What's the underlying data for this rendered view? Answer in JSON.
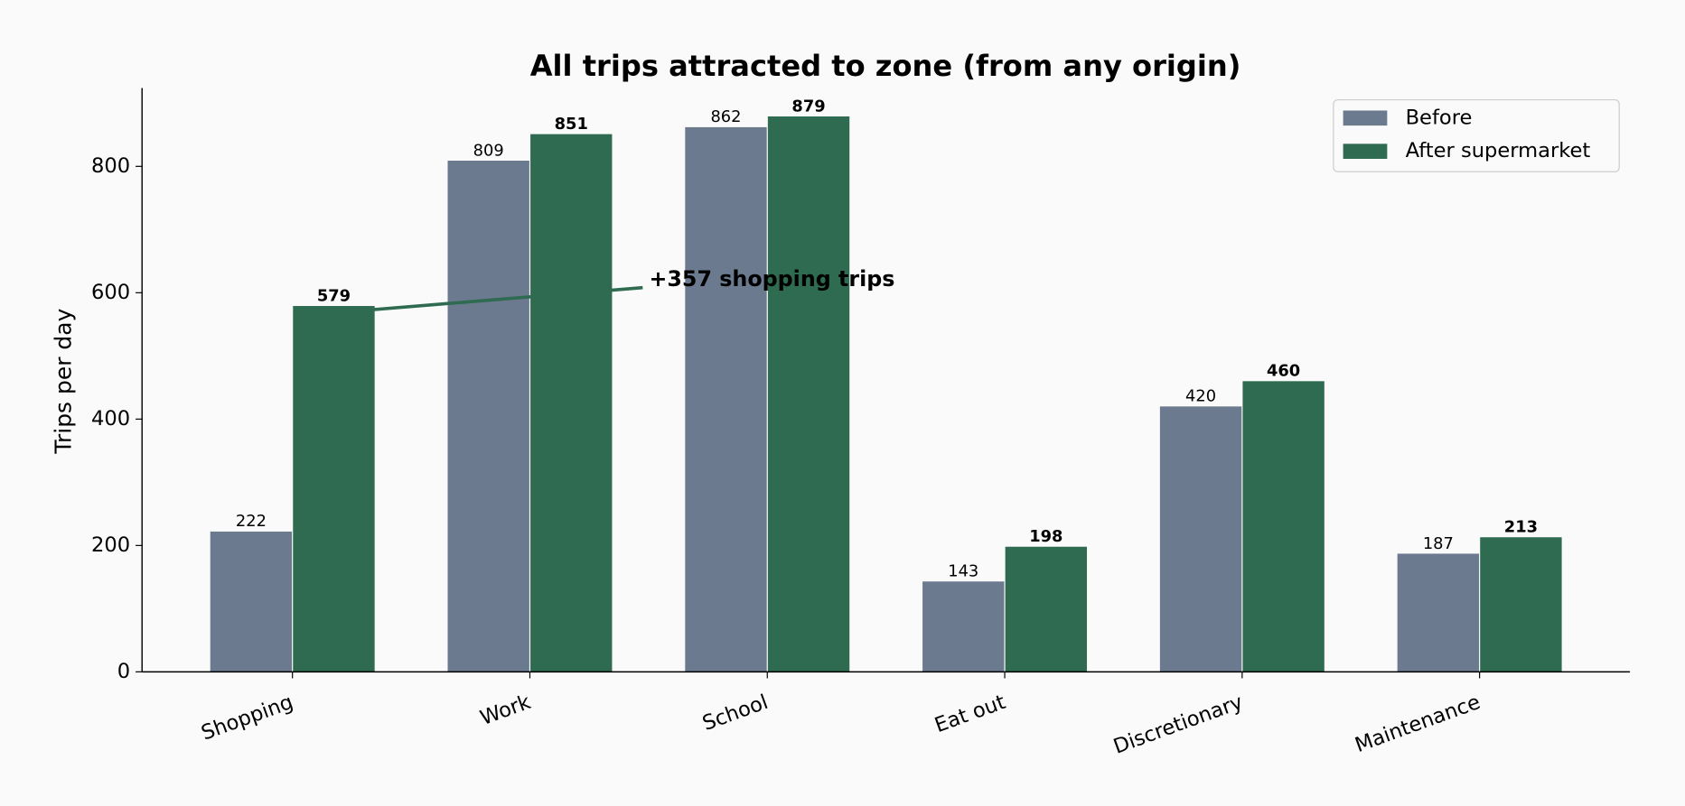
{
  "chart_data": {
    "type": "bar",
    "title": "All trips attracted to zone (from any origin)",
    "y_label": "Trips per day",
    "categories": [
      "Shopping",
      "Work",
      "School",
      "Eat out",
      "Discretionary",
      "Maintenance"
    ],
    "series": [
      {
        "name": "Before",
        "color": "#6b7a8f",
        "values": [
          222,
          809,
          862,
          143,
          420,
          187
        ]
      },
      {
        "name": "After supermarket",
        "color": "#2e6b50",
        "values": [
          579,
          851,
          879,
          198,
          460,
          213
        ]
      }
    ],
    "ylim": [
      0,
      924
    ],
    "yticks": [
      0,
      200,
      400,
      600,
      800
    ],
    "legend": "upper right",
    "annotation": {
      "text": "+357 shopping trips",
      "color": "#2e6b50"
    }
  }
}
